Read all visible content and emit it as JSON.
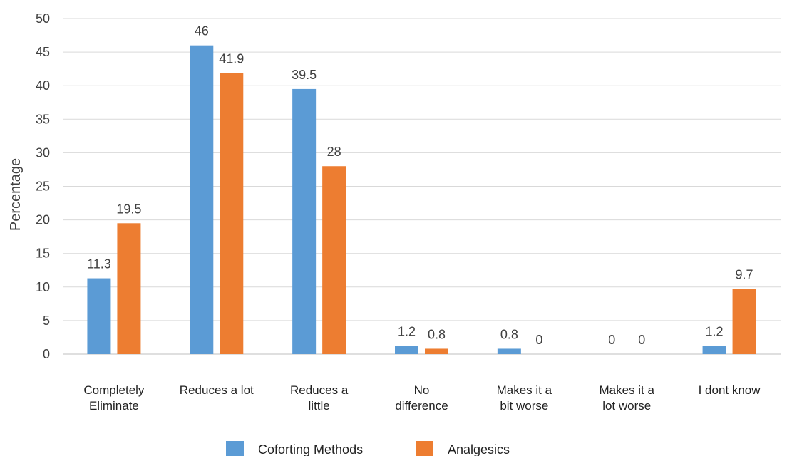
{
  "chart_data": {
    "type": "bar",
    "ylabel": "Percentage",
    "xlabel": "",
    "ylim": [
      0,
      50
    ],
    "yticks": [
      0,
      5,
      10,
      15,
      20,
      25,
      30,
      35,
      40,
      45,
      50
    ],
    "grid": true,
    "legend_position": "bottom",
    "categories": [
      [
        "Completely",
        "Eliminate"
      ],
      [
        "Reduces a lot"
      ],
      [
        "Reduces a",
        "little"
      ],
      [
        "No",
        "difference"
      ],
      [
        "Makes it a",
        "bit worse"
      ],
      [
        "Makes it a",
        "lot worse"
      ],
      [
        "I dont know"
      ]
    ],
    "series": [
      {
        "name": "Coforting Methods",
        "color": "#5B9BD5",
        "values": [
          11.3,
          46,
          39.5,
          1.2,
          0.8,
          0,
          1.2
        ]
      },
      {
        "name": "Analgesics",
        "color": "#ED7D31",
        "values": [
          19.5,
          41.9,
          28,
          0.8,
          0,
          0,
          9.7
        ]
      }
    ]
  }
}
